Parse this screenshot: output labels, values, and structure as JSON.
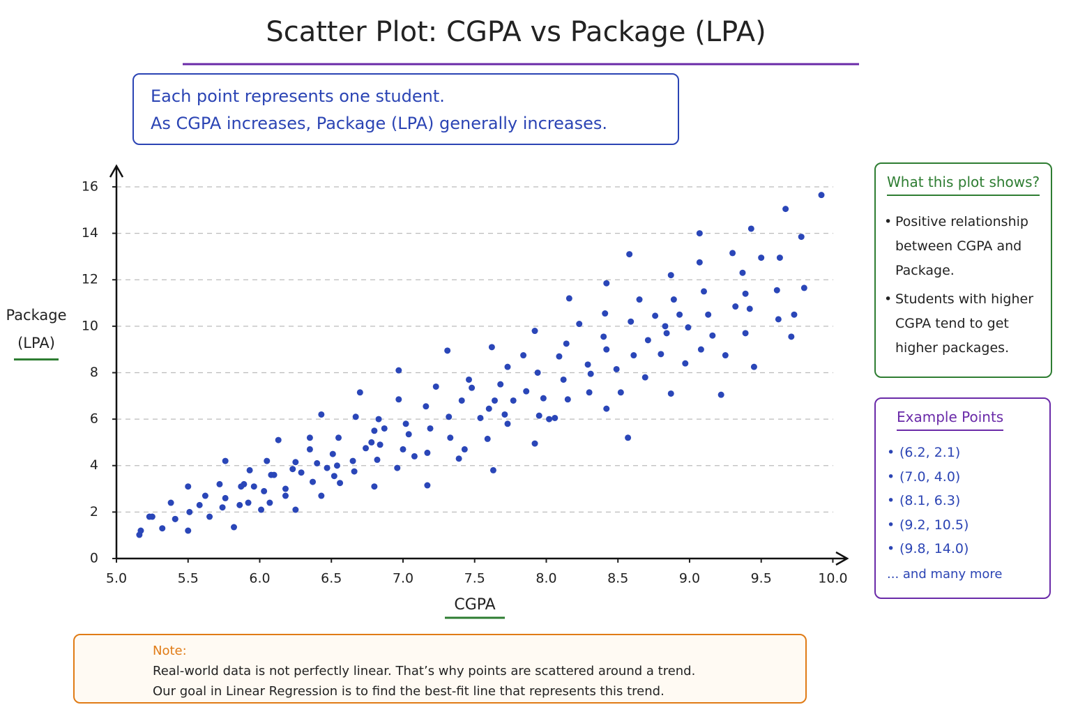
{
  "chart_data": {
    "type": "scatter",
    "title": "Scatter Plot: CGPA vs Package (LPA)",
    "description": [
      "Each point represents one student.",
      "As CGPA increases, Package (LPA) generally increases."
    ],
    "x_label": "CGPA",
    "y_label": "Package (LPA)",
    "color": "#2a46b8",
    "grid": true,
    "xlim": [
      5,
      10.1
    ],
    "ylim": [
      0,
      16.9
    ],
    "xticks": [
      {
        "value": 5,
        "label": "5.0"
      },
      5.5,
      {
        "value": 6,
        "label": "6.0"
      },
      6.5,
      {
        "value": 7,
        "label": "7.0"
      },
      7.5,
      {
        "value": 8,
        "label": "8.0"
      },
      8.5,
      {
        "value": 9,
        "label": "9.0"
      },
      9.5,
      {
        "value": 10,
        "label": "10.0"
      }
    ],
    "yticks": [
      0,
      2,
      4,
      6,
      8,
      10,
      12,
      14,
      16
    ],
    "x": [
      5.16,
      5.17,
      5.23,
      5.25,
      5.32,
      5.38,
      5.41,
      5.41,
      5.5,
      5.5,
      5.51,
      5.58,
      5.62,
      5.65,
      5.72,
      5.74,
      5.76,
      5.76,
      5.82,
      5.86,
      5.87,
      5.89,
      5.92,
      5.93,
      5.96,
      6.01,
      6.03,
      6.05,
      6.07,
      6.08,
      6.1,
      6.13,
      6.18,
      6.18,
      6.23,
      6.25,
      6.25,
      6.29,
      6.35,
      6.35,
      6.37,
      6.4,
      6.43,
      6.43,
      6.47,
      6.51,
      6.52,
      6.54,
      6.55,
      6.56,
      6.65,
      6.66,
      6.67,
      6.7,
      6.74,
      6.78,
      6.8,
      6.82,
      6.83,
      6.84,
      6.87,
      6.8,
      6.96,
      6.97,
      6.97,
      7.0,
      7.02,
      7.04,
      7.08,
      7.16,
      7.17,
      7.17,
      7.19,
      7.23,
      7.31,
      7.32,
      7.33,
      7.39,
      7.41,
      7.43,
      7.46,
      7.48,
      7.54,
      7.59,
      7.6,
      7.62,
      7.63,
      7.64,
      7.68,
      7.71,
      7.73,
      7.73,
      7.77,
      7.84,
      7.86,
      7.92,
      7.92,
      7.94,
      7.95,
      7.98,
      8.02,
      8.06,
      8.09,
      8.12,
      8.14,
      8.15,
      8.16,
      8.23,
      8.29,
      8.3,
      8.31,
      8.4,
      8.41,
      8.42,
      8.42,
      8.42,
      8.49,
      8.52,
      8.57,
      8.58,
      8.59,
      8.61,
      8.65,
      8.69,
      8.71,
      8.76,
      8.8,
      8.83,
      8.84,
      8.87,
      8.87,
      8.89,
      8.93,
      8.97,
      8.99,
      9.07,
      9.07,
      9.08,
      9.1,
      9.13,
      9.16,
      9.22,
      9.25,
      9.3,
      9.32,
      9.37,
      9.39,
      9.39,
      9.42,
      9.43,
      9.45,
      9.5,
      9.61,
      9.62,
      9.63,
      9.67,
      9.71,
      9.73,
      9.78,
      9.8,
      9.92
    ],
    "y": [
      1.02,
      1.2,
      1.8,
      1.8,
      1.3,
      2.4,
      1.7,
      1.7,
      3.1,
      1.2,
      2.0,
      2.3,
      2.7,
      1.8,
      3.2,
      2.2,
      2.6,
      4.2,
      1.35,
      2.3,
      3.1,
      3.2,
      2.4,
      3.8,
      3.1,
      2.1,
      2.9,
      4.2,
      2.4,
      3.6,
      3.6,
      5.1,
      2.7,
      3.0,
      3.85,
      2.1,
      4.15,
      3.7,
      4.7,
      5.2,
      3.3,
      4.1,
      2.7,
      6.2,
      3.9,
      4.5,
      3.55,
      4.0,
      5.2,
      3.25,
      4.2,
      3.75,
      6.1,
      7.15,
      4.75,
      5.0,
      5.5,
      4.25,
      6.0,
      4.9,
      5.6,
      3.1,
      3.9,
      6.85,
      8.1,
      4.7,
      5.8,
      5.35,
      4.4,
      6.55,
      3.15,
      4.55,
      5.6,
      7.4,
      8.95,
      6.1,
      5.2,
      4.3,
      6.8,
      4.7,
      7.7,
      7.35,
      6.05,
      5.15,
      6.45,
      9.1,
      3.8,
      6.8,
      7.5,
      6.2,
      5.8,
      8.25,
      6.8,
      8.75,
      7.2,
      9.8,
      4.95,
      8.0,
      6.15,
      6.9,
      6.0,
      6.05,
      8.7,
      7.7,
      9.25,
      6.85,
      11.2,
      10.1,
      8.35,
      7.15,
      7.95,
      9.55,
      10.55,
      6.45,
      11.85,
      9.0,
      8.15,
      7.15,
      5.2,
      13.1,
      10.2,
      8.75,
      11.15,
      7.8,
      9.4,
      10.45,
      8.8,
      10.0,
      9.7,
      7.1,
      12.2,
      11.15,
      10.5,
      8.4,
      9.95,
      12.75,
      14.0,
      9.0,
      11.5,
      10.5,
      9.6,
      7.05,
      8.75,
      13.15,
      10.85,
      12.3,
      11.4,
      9.7,
      10.75,
      14.2,
      8.25,
      12.95,
      11.55,
      10.3,
      12.95,
      15.05,
      9.55,
      10.5,
      13.85,
      11.65,
      15.65
    ],
    "panel": {
      "title": "What this plot shows?",
      "bullets": [
        "Positive relationship between CGPA and Package.",
        "Students with higher CGPA tend to get higher packages."
      ]
    },
    "examples": {
      "title": "Example Points",
      "items": [
        "(6.2, 2.1)",
        "(7.0, 4.0)",
        "(8.1, 6.3)",
        "(9.2, 10.5)",
        "(9.8, 14.0)"
      ],
      "more": "... and many more"
    },
    "note": {
      "title": "Note:",
      "lines": [
        "Real-world data is not perfectly linear. That’s why points are scattered around a trend.",
        "Our goal in Linear Regression is to find the best-fit line that represents this trend."
      ]
    }
  }
}
